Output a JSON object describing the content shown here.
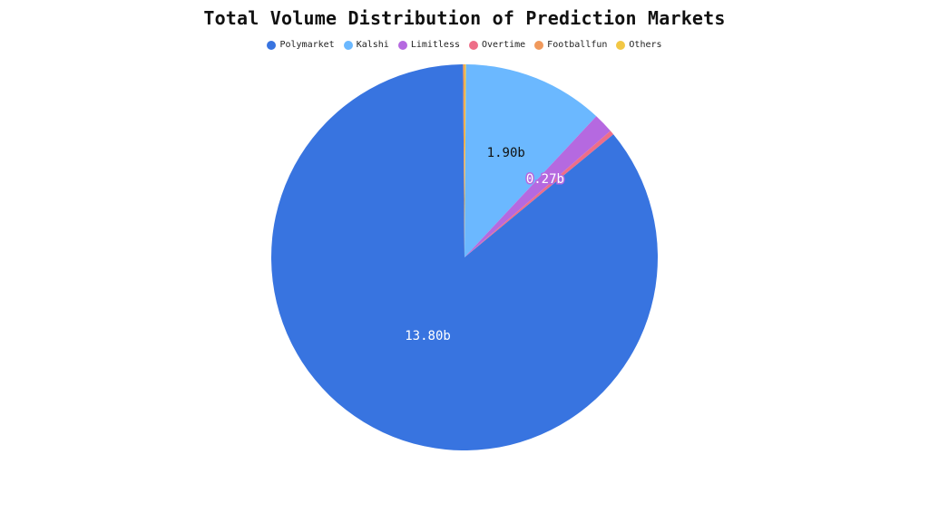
{
  "chart_data": {
    "type": "pie",
    "title": "Total Volume Distribution of Prediction Markets",
    "legend_position": "top-center",
    "slices": [
      {
        "name": "Others",
        "value": 0.02,
        "color": "#F2C744",
        "label": ""
      },
      {
        "name": "Kalshi",
        "value": 1.9,
        "color": "#6BB8FF",
        "label": "1.90b",
        "label_color": "#111111"
      },
      {
        "name": "Limitless",
        "value": 0.27,
        "color": "#B569E0",
        "label": "0.27b",
        "label_color": "#ffffff",
        "label_outline": "#B569E0"
      },
      {
        "name": "Overtime",
        "value": 0.06,
        "color": "#EE6E88",
        "label": ""
      },
      {
        "name": "Polymarket",
        "value": 13.8,
        "color": "#3874E0",
        "label": "13.80b",
        "label_color": "#ffffff"
      },
      {
        "name": "Footballfun",
        "value": 0.02,
        "color": "#F0995C",
        "label": ""
      }
    ],
    "legend_order": [
      "Polymarket",
      "Kalshi",
      "Limitless",
      "Overtime",
      "Footballfun",
      "Others"
    ]
  }
}
